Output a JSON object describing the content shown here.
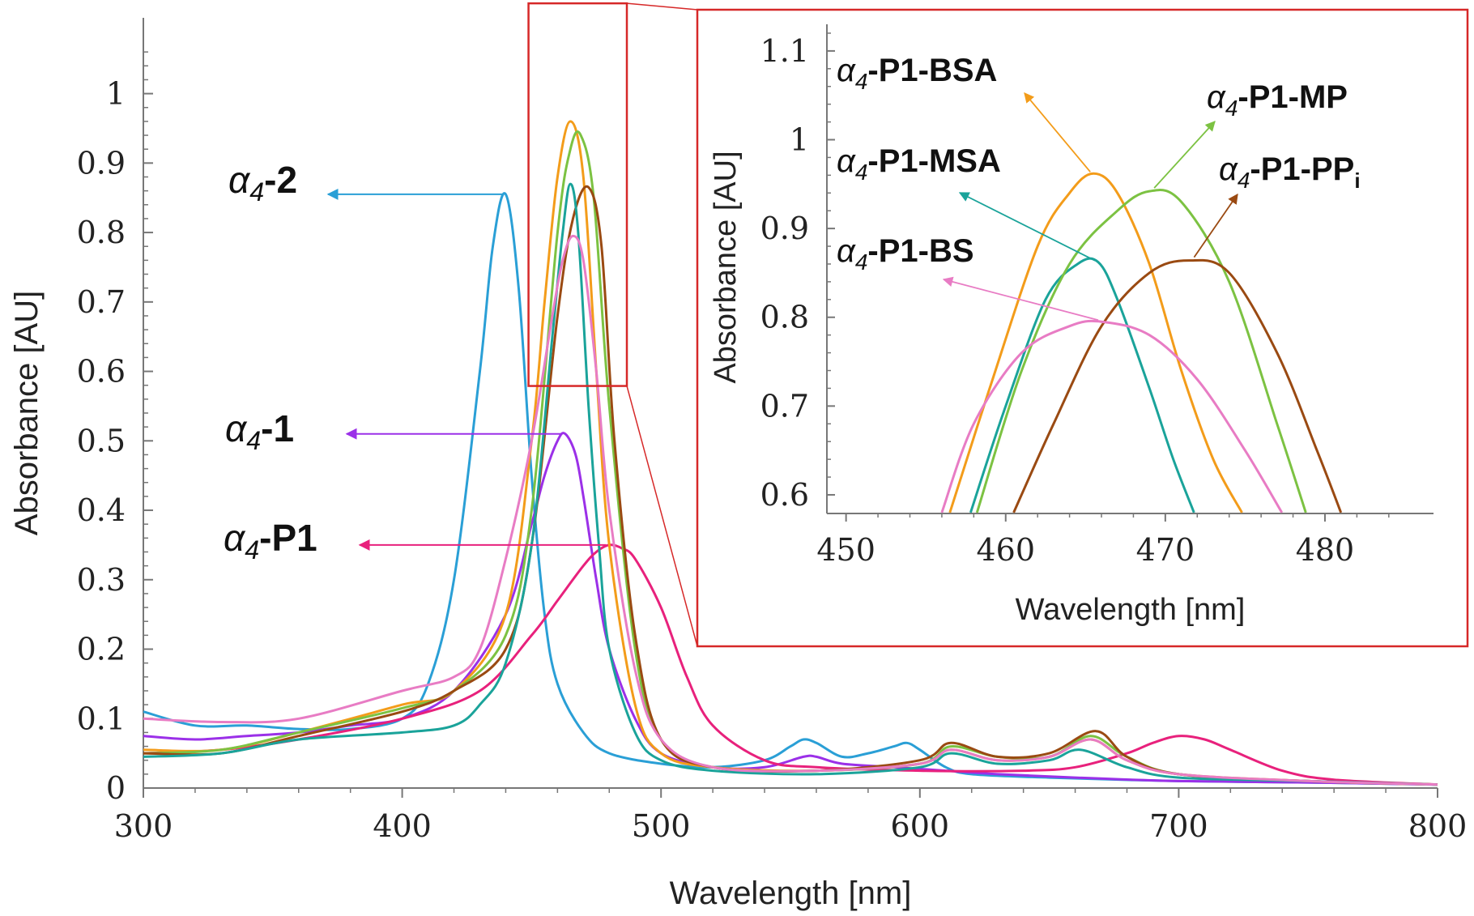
{
  "colors": {
    "a2": "#2a9fd6",
    "a1": "#9b30e8",
    "p1": "#e8217c",
    "bsa": "#f39c1a",
    "msa": "#1aa39a",
    "mp": "#7cc242",
    "ppi": "#9a4a12",
    "bs": "#e87cc4",
    "zoom_box": "#d62828",
    "axis": "#777777"
  },
  "chart_data": [
    {
      "type": "line",
      "title": "",
      "xlabel": "Wavelength [nm]",
      "ylabel": "Absorbance [AU]",
      "xlim": [
        300,
        800
      ],
      "ylim": [
        0,
        1.08
      ],
      "xticks": [
        "300",
        "400",
        "500",
        "600",
        "700",
        "800"
      ],
      "yticks": [
        "0",
        "0.1",
        "0.2",
        "0.3",
        "0.4",
        "0.5",
        "0.6",
        "0.7",
        "0.8",
        "0.9",
        "1"
      ],
      "grid": false,
      "labels": {
        "a2": {
          "prefix": "α",
          "sub": "4",
          "suffix": "-2"
        },
        "a1": {
          "prefix": "α",
          "sub": "4",
          "suffix": "-1"
        },
        "p1": {
          "prefix": "α",
          "sub": "4",
          "suffix": "-P1"
        }
      },
      "series": [
        {
          "key": "a2",
          "x": [
            300,
            320,
            340,
            360,
            380,
            400,
            410,
            420,
            430,
            435,
            440,
            445,
            450,
            455,
            460,
            470,
            480,
            500,
            520,
            540,
            550,
            555,
            560,
            570,
            580,
            590,
            595,
            600,
            610,
            620,
            650,
            700,
            750,
            800
          ],
          "y": [
            0.11,
            0.09,
            0.09,
            0.085,
            0.085,
            0.1,
            0.15,
            0.3,
            0.6,
            0.78,
            0.855,
            0.72,
            0.45,
            0.25,
            0.15,
            0.08,
            0.05,
            0.035,
            0.03,
            0.04,
            0.06,
            0.07,
            0.065,
            0.045,
            0.05,
            0.06,
            0.065,
            0.055,
            0.03,
            0.02,
            0.015,
            0.01,
            0.008,
            0.005
          ]
        },
        {
          "key": "a1",
          "x": [
            300,
            320,
            340,
            360,
            380,
            400,
            420,
            440,
            450,
            455,
            460,
            463,
            467,
            470,
            475,
            480,
            490,
            500,
            520,
            540,
            555,
            560,
            570,
            590,
            610,
            630,
            660,
            700,
            750,
            800
          ],
          "y": [
            0.075,
            0.07,
            0.075,
            0.08,
            0.09,
            0.1,
            0.14,
            0.25,
            0.38,
            0.45,
            0.5,
            0.51,
            0.48,
            0.42,
            0.3,
            0.2,
            0.1,
            0.05,
            0.03,
            0.03,
            0.045,
            0.045,
            0.035,
            0.03,
            0.025,
            0.02,
            0.015,
            0.01,
            0.008,
            0.005
          ]
        },
        {
          "key": "p1",
          "x": [
            300,
            330,
            360,
            400,
            430,
            450,
            460,
            470,
            475,
            480,
            485,
            490,
            500,
            510,
            520,
            540,
            560,
            600,
            640,
            660,
            680,
            690,
            700,
            710,
            720,
            740,
            760,
            800
          ],
          "y": [
            0.05,
            0.055,
            0.07,
            0.1,
            0.14,
            0.22,
            0.27,
            0.32,
            0.34,
            0.35,
            0.345,
            0.33,
            0.26,
            0.16,
            0.09,
            0.04,
            0.03,
            0.025,
            0.025,
            0.03,
            0.05,
            0.065,
            0.075,
            0.07,
            0.055,
            0.025,
            0.012,
            0.005
          ]
        },
        {
          "key": "bsa",
          "x": [
            300,
            330,
            360,
            400,
            420,
            440,
            450,
            455,
            460,
            465,
            470,
            475,
            480,
            490,
            500,
            520,
            560,
            600,
            612,
            630,
            650,
            666,
            680,
            700,
            750,
            800
          ],
          "y": [
            0.055,
            0.055,
            0.08,
            0.12,
            0.14,
            0.25,
            0.5,
            0.7,
            0.88,
            0.96,
            0.88,
            0.6,
            0.35,
            0.12,
            0.05,
            0.03,
            0.025,
            0.035,
            0.055,
            0.04,
            0.045,
            0.07,
            0.04,
            0.02,
            0.01,
            0.005
          ]
        },
        {
          "key": "mp",
          "x": [
            300,
            330,
            360,
            400,
            420,
            440,
            450,
            460,
            465,
            469,
            474,
            480,
            490,
            500,
            520,
            560,
            600,
            612,
            630,
            650,
            666,
            680,
            700,
            750,
            800
          ],
          "y": [
            0.05,
            0.055,
            0.08,
            0.115,
            0.14,
            0.22,
            0.4,
            0.8,
            0.92,
            0.94,
            0.85,
            0.55,
            0.2,
            0.07,
            0.03,
            0.025,
            0.035,
            0.06,
            0.045,
            0.045,
            0.075,
            0.045,
            0.02,
            0.01,
            0.005
          ]
        },
        {
          "key": "ppi",
          "x": [
            300,
            330,
            360,
            400,
            420,
            440,
            450,
            460,
            466,
            472,
            477,
            482,
            490,
            500,
            520,
            560,
            600,
            612,
            630,
            650,
            668,
            680,
            700,
            750,
            800
          ],
          "y": [
            0.05,
            0.05,
            0.075,
            0.11,
            0.14,
            0.2,
            0.35,
            0.68,
            0.82,
            0.865,
            0.78,
            0.5,
            0.22,
            0.07,
            0.03,
            0.025,
            0.04,
            0.065,
            0.045,
            0.05,
            0.082,
            0.045,
            0.02,
            0.01,
            0.005
          ]
        },
        {
          "key": "msa",
          "x": [
            300,
            330,
            360,
            400,
            420,
            430,
            440,
            450,
            458,
            462,
            465,
            468,
            472,
            476,
            480,
            490,
            500,
            520,
            560,
            600,
            612,
            630,
            650,
            662,
            680,
            700,
            750,
            800
          ],
          "y": [
            0.045,
            0.05,
            0.07,
            0.08,
            0.09,
            0.12,
            0.18,
            0.35,
            0.65,
            0.8,
            0.87,
            0.8,
            0.55,
            0.35,
            0.2,
            0.08,
            0.04,
            0.025,
            0.02,
            0.03,
            0.05,
            0.035,
            0.04,
            0.055,
            0.03,
            0.015,
            0.01,
            0.005
          ]
        },
        {
          "key": "bs",
          "x": [
            300,
            330,
            360,
            400,
            420,
            430,
            440,
            450,
            458,
            462,
            466,
            470,
            475,
            480,
            490,
            500,
            520,
            560,
            600,
            612,
            630,
            650,
            666,
            680,
            700,
            750,
            800
          ],
          "y": [
            0.1,
            0.095,
            0.1,
            0.14,
            0.16,
            0.2,
            0.33,
            0.5,
            0.68,
            0.76,
            0.795,
            0.76,
            0.6,
            0.4,
            0.17,
            0.07,
            0.03,
            0.025,
            0.035,
            0.055,
            0.04,
            0.045,
            0.07,
            0.04,
            0.02,
            0.01,
            0.005
          ]
        }
      ]
    },
    {
      "type": "line",
      "title": "",
      "xlabel": "Wavelength [nm]",
      "ylabel": "Absorbance [AU]",
      "xlim": [
        448.8,
        486.8
      ],
      "ylim": [
        0.579,
        1.13
      ],
      "xticks": [
        "450",
        "460",
        "470",
        "480"
      ],
      "yticks": [
        "0.6",
        "0.7",
        "0.8",
        "0.9",
        "1",
        "1.1"
      ],
      "grid": false,
      "labels": {
        "bsa": {
          "prefix": "α",
          "sub": "4",
          "suffix": "-P1-BSA"
        },
        "mp": {
          "prefix": "α",
          "sub": "4",
          "suffix": "-P1-MP"
        },
        "msa": {
          "prefix": "α",
          "sub": "4",
          "suffix": "-P1-MSA"
        },
        "ppi": {
          "prefix": "α",
          "sub": "4",
          "suffix": "-P1-PP",
          "tail": "i"
        },
        "bs": {
          "prefix": "α",
          "sub": "4",
          "suffix": "-P1-BS"
        }
      },
      "series": [
        {
          "key": "bsa",
          "x": [
            456.5,
            459,
            462,
            464,
            465.5,
            467,
            469,
            471,
            473,
            474.8
          ],
          "y": [
            0.58,
            0.72,
            0.88,
            0.94,
            0.962,
            0.94,
            0.86,
            0.74,
            0.64,
            0.58
          ]
        },
        {
          "key": "msa",
          "x": [
            457.8,
            460,
            462.5,
            464.5,
            465.8,
            467,
            469,
            470.5,
            471.8
          ],
          "y": [
            0.58,
            0.7,
            0.82,
            0.86,
            0.862,
            0.82,
            0.72,
            0.64,
            0.58
          ]
        },
        {
          "key": "mp",
          "x": [
            458.2,
            461,
            464,
            467,
            469,
            471,
            474,
            477,
            478.8
          ],
          "y": [
            0.58,
            0.74,
            0.86,
            0.92,
            0.942,
            0.93,
            0.84,
            0.68,
            0.58
          ]
        },
        {
          "key": "ppi",
          "x": [
            460.5,
            463,
            466,
            469,
            471.5,
            474,
            477,
            479.5,
            481
          ],
          "y": [
            0.58,
            0.68,
            0.79,
            0.85,
            0.864,
            0.85,
            0.76,
            0.65,
            0.58
          ]
        },
        {
          "key": "bs",
          "x": [
            456,
            458,
            461,
            464,
            466,
            469,
            472,
            475,
            477.3
          ],
          "y": [
            0.58,
            0.68,
            0.76,
            0.79,
            0.795,
            0.78,
            0.73,
            0.65,
            0.58
          ]
        }
      ]
    }
  ]
}
